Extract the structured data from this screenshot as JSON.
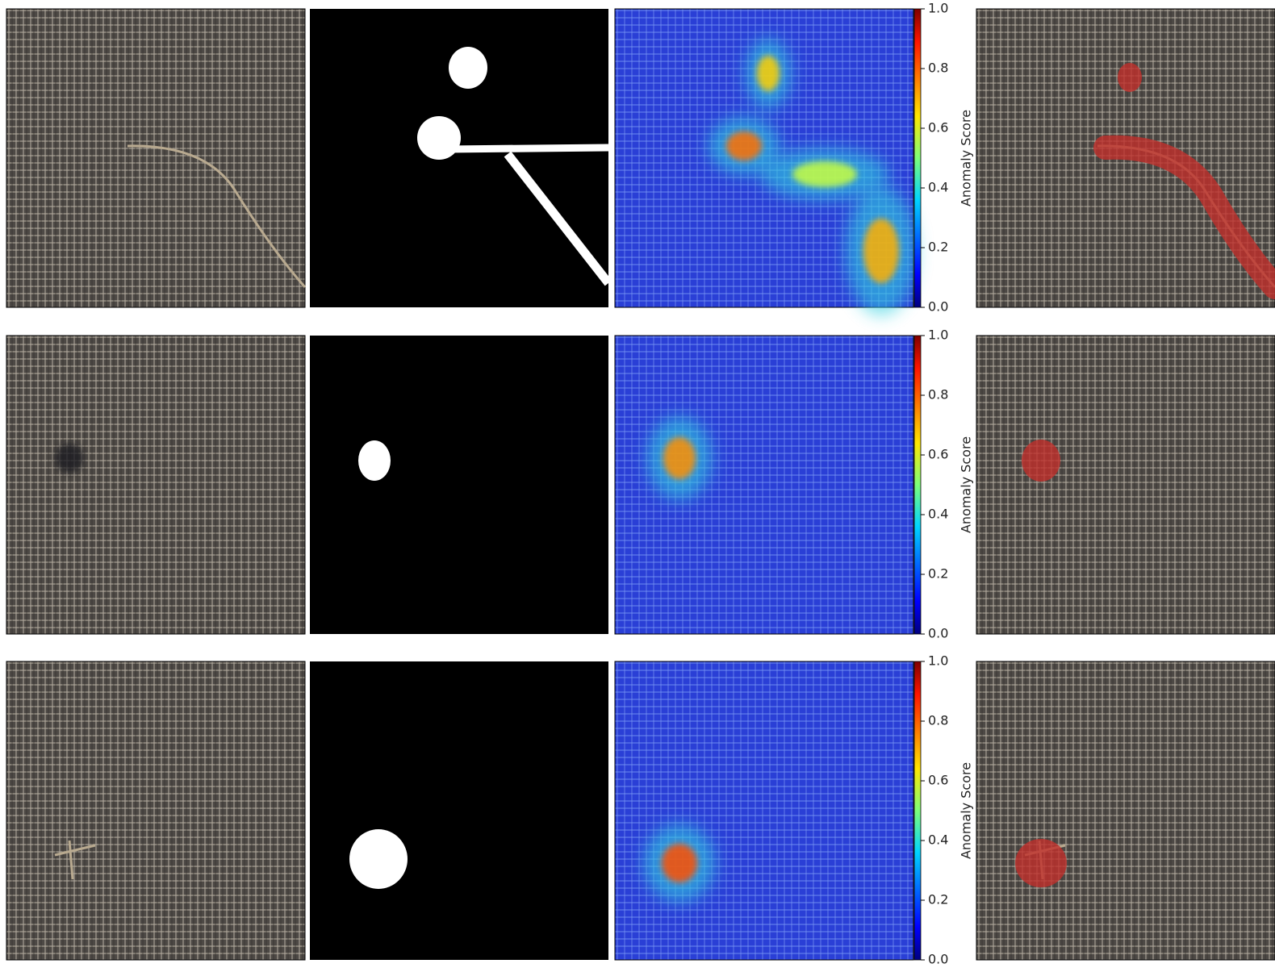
{
  "colorbar": {
    "label": "Anomaly Score",
    "lim": [
      0,
      1
    ],
    "ticks": [
      {
        "value": 0,
        "label": "0.0"
      },
      0.2,
      0.4,
      0.6,
      0.8,
      {
        "value": 1,
        "label": "1.0"
      }
    ]
  }
}
